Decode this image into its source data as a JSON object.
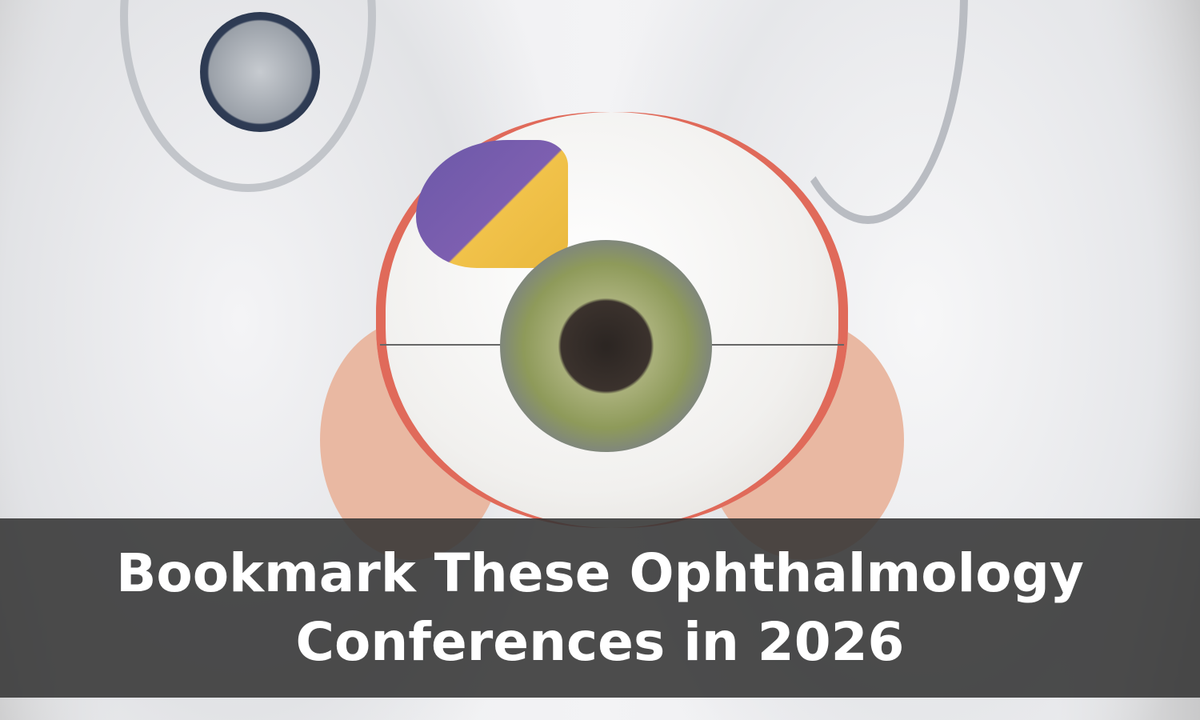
{
  "headline": {
    "line1": "Bookmark These Ophthalmology",
    "line2": "Conferences in 2026"
  },
  "colors": {
    "banner_background": "#343434",
    "headline_text": "#ffffff"
  }
}
